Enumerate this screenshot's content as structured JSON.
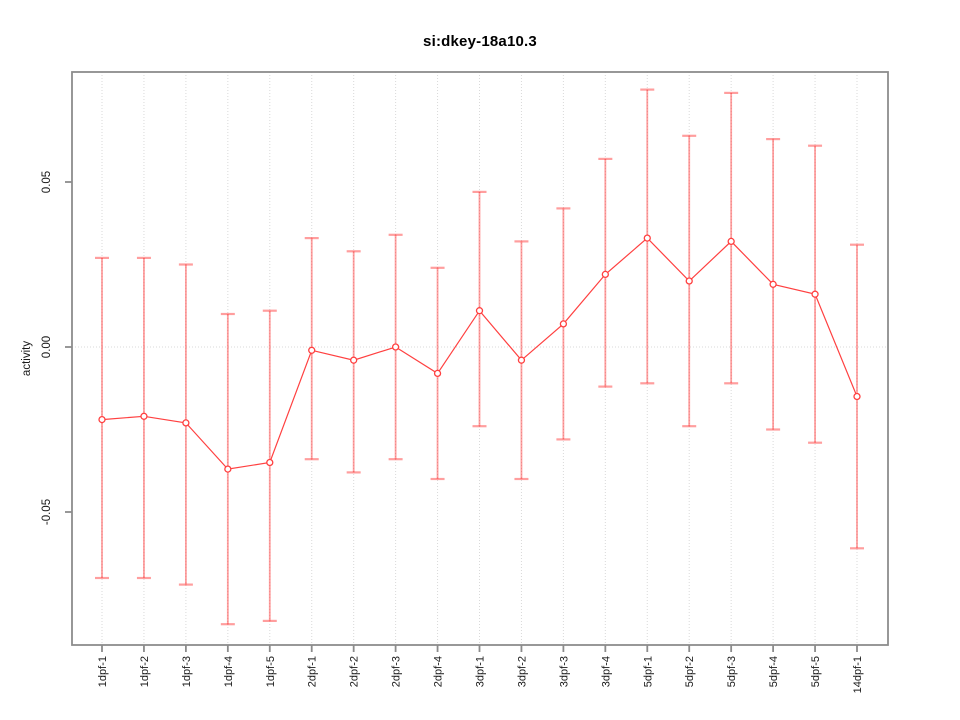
{
  "title": "si:dkey-18a10.3",
  "chart_data": {
    "type": "line",
    "title": "si:dkey-18a10.3",
    "xlabel": "",
    "ylabel": "activity",
    "legend_position": "none",
    "grid": "vertical dotted gridlines at each category; dotted horizontal reference line at y=0",
    "categories": [
      "1dpf-1",
      "1dpf-2",
      "1dpf-3",
      "1dpf-4",
      "1dpf-5",
      "2dpf-1",
      "2dpf-2",
      "2dpf-3",
      "2dpf-4",
      "3dpf-1",
      "3dpf-2",
      "3dpf-3",
      "3dpf-4",
      "5dpf-1",
      "5dpf-2",
      "5dpf-3",
      "5dpf-4",
      "5dpf-5",
      "14dpf-1"
    ],
    "series": [
      {
        "name": "activity",
        "marker": "open-circle",
        "values": [
          -0.022,
          -0.021,
          -0.023,
          -0.037,
          -0.035,
          -0.001,
          -0.004,
          0.0,
          -0.008,
          0.011,
          -0.004,
          0.007,
          0.022,
          0.033,
          0.02,
          0.032,
          0.019,
          0.016,
          -0.015
        ],
        "error_upper": [
          0.027,
          0.027,
          0.025,
          0.01,
          0.011,
          0.033,
          0.029,
          0.034,
          0.024,
          0.047,
          0.032,
          0.042,
          0.057,
          0.078,
          0.064,
          0.077,
          0.063,
          0.061,
          0.031
        ],
        "error_lower": [
          -0.07,
          -0.07,
          -0.072,
          -0.084,
          -0.083,
          -0.034,
          -0.038,
          -0.034,
          -0.04,
          -0.024,
          -0.04,
          -0.028,
          -0.012,
          -0.011,
          -0.024,
          -0.011,
          -0.025,
          -0.029,
          -0.061
        ]
      }
    ],
    "yticks": [
      -0.05,
      0.0,
      0.05
    ],
    "ytick_labels": [
      "-0.05",
      "0.00",
      "0.05"
    ],
    "ylim": [
      -0.09,
      0.084
    ],
    "colors": {
      "series_line": "#ff4040",
      "marker_stroke": "#ff4040",
      "error_bar": "rgba(255,40,40,0.45)",
      "grid_line": "#d9d9d9",
      "frame": "#8c8c8c",
      "tick": "#8c8c8c",
      "text": "#1a1a1a",
      "background": "#ffffff"
    }
  }
}
